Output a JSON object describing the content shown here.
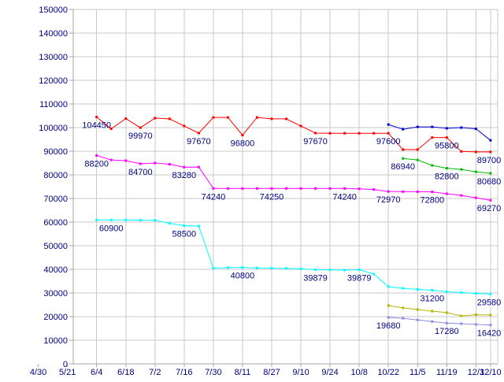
{
  "chart_data": {
    "type": "line",
    "title": "",
    "xlabel": "",
    "ylabel": "",
    "grid": true,
    "legend": "none",
    "background": "#ffffff",
    "grid_color": "#c9c9c9",
    "axis_color": "#a6a6a6",
    "label_color": "#000080",
    "y_axis": {
      "min": 0,
      "max": 150000,
      "step": 10000,
      "tick_labels": [
        "0",
        "10000",
        "20000",
        "30000",
        "40000",
        "50000",
        "60000",
        "70000",
        "80000",
        "90000",
        "100000",
        "110000",
        "120000",
        "130000",
        "140000",
        "150000"
      ]
    },
    "x_axis": {
      "tick_labels": [
        "4/30",
        "5/21",
        "6/4",
        "6/18",
        "7/2",
        "7/16",
        "7/30",
        "8/11",
        "8/27",
        "9/10",
        "9/24",
        "10/8",
        "10/22",
        "11/5",
        "11/19",
        "12/3",
        "12/10"
      ],
      "points_per_interval": 2,
      "note": "data points are weekly; gridline labels bi-weekly; last label 12/10 is a half interval after 12/3"
    },
    "series": [
      {
        "name": "red",
        "color": "#ff0000",
        "start": 0,
        "values": [
          104450,
          99500,
          103800,
          99970,
          104000,
          103700,
          100700,
          97670,
          104300,
          104300,
          96800,
          104300,
          103700,
          103700,
          100700,
          97670,
          97600,
          97600,
          97600,
          97600,
          97600,
          90700,
          90700,
          95800,
          95800,
          89900,
          89700,
          89700
        ],
        "marks": [
          {
            "i": 0,
            "t": "104450"
          },
          {
            "i": 3,
            "t": "99970"
          },
          {
            "i": 7,
            "t": "97670"
          },
          {
            "i": 10,
            "t": "96800"
          },
          {
            "i": 15,
            "t": "97670"
          },
          {
            "i": 20,
            "t": "97600"
          },
          {
            "i": 24,
            "t": "95800"
          },
          {
            "i": 27,
            "t": "89700"
          }
        ]
      },
      {
        "name": "blue",
        "color": "#0000cc",
        "start": 20,
        "values": [
          101300,
          99300,
          100300,
          100300,
          99700,
          100000,
          99500,
          94600
        ],
        "marks": []
      },
      {
        "name": "magenta",
        "color": "#ff00ff",
        "start": 0,
        "values": [
          88200,
          86300,
          86000,
          84700,
          85000,
          84500,
          83280,
          83300,
          74240,
          74240,
          74250,
          74250,
          74250,
          74250,
          74240,
          74240,
          74240,
          74240,
          74100,
          73800,
          72970,
          72900,
          72850,
          72800,
          72000,
          71300,
          70300,
          69270
        ],
        "marks": [
          {
            "i": 0,
            "t": "88200"
          },
          {
            "i": 3,
            "t": "84700"
          },
          {
            "i": 6,
            "t": "83280"
          },
          {
            "i": 8,
            "t": "74240"
          },
          {
            "i": 12,
            "t": "74250"
          },
          {
            "i": 17,
            "t": "74240"
          },
          {
            "i": 20,
            "t": "72970"
          },
          {
            "i": 23,
            "t": "72800"
          },
          {
            "i": 27,
            "t": "69270"
          }
        ]
      },
      {
        "name": "green",
        "color": "#00bb00",
        "start": 21,
        "values": [
          86940,
          86300,
          84000,
          82800,
          82300,
          81300,
          80680
        ],
        "marks": [
          {
            "i": 0,
            "t": "86940"
          },
          {
            "i": 3,
            "t": "82800"
          },
          {
            "i": 6,
            "t": "80680"
          }
        ]
      },
      {
        "name": "cyan",
        "color": "#00ffff",
        "start": 0,
        "values": [
          60900,
          60900,
          60900,
          60800,
          60800,
          59500,
          58500,
          58300,
          40500,
          40700,
          40800,
          40600,
          40500,
          40400,
          40200,
          39879,
          39800,
          39700,
          39879,
          38000,
          32700,
          32000,
          31500,
          31200,
          30500,
          30200,
          29800,
          29580
        ],
        "marks": [
          {
            "i": 1,
            "t": "60900"
          },
          {
            "i": 6,
            "t": "58500"
          },
          {
            "i": 10,
            "t": "40800"
          },
          {
            "i": 15,
            "t": "39879"
          },
          {
            "i": 18,
            "t": "39879"
          },
          {
            "i": 23,
            "t": "31200"
          },
          {
            "i": 27,
            "t": "29580"
          }
        ]
      },
      {
        "name": "olive",
        "color": "#b5b500",
        "start": 20,
        "values": [
          24700,
          23700,
          23000,
          22300,
          21700,
          20300,
          20800,
          20700
        ],
        "marks": []
      },
      {
        "name": "purple",
        "color": "#8c8ce0",
        "start": 20,
        "values": [
          19680,
          19300,
          18600,
          17900,
          17280,
          17000,
          16700,
          16420
        ],
        "marks": [
          {
            "i": 0,
            "t": "19680"
          },
          {
            "i": 4,
            "t": "17280"
          },
          {
            "i": 7,
            "t": "16420"
          }
        ]
      }
    ]
  }
}
